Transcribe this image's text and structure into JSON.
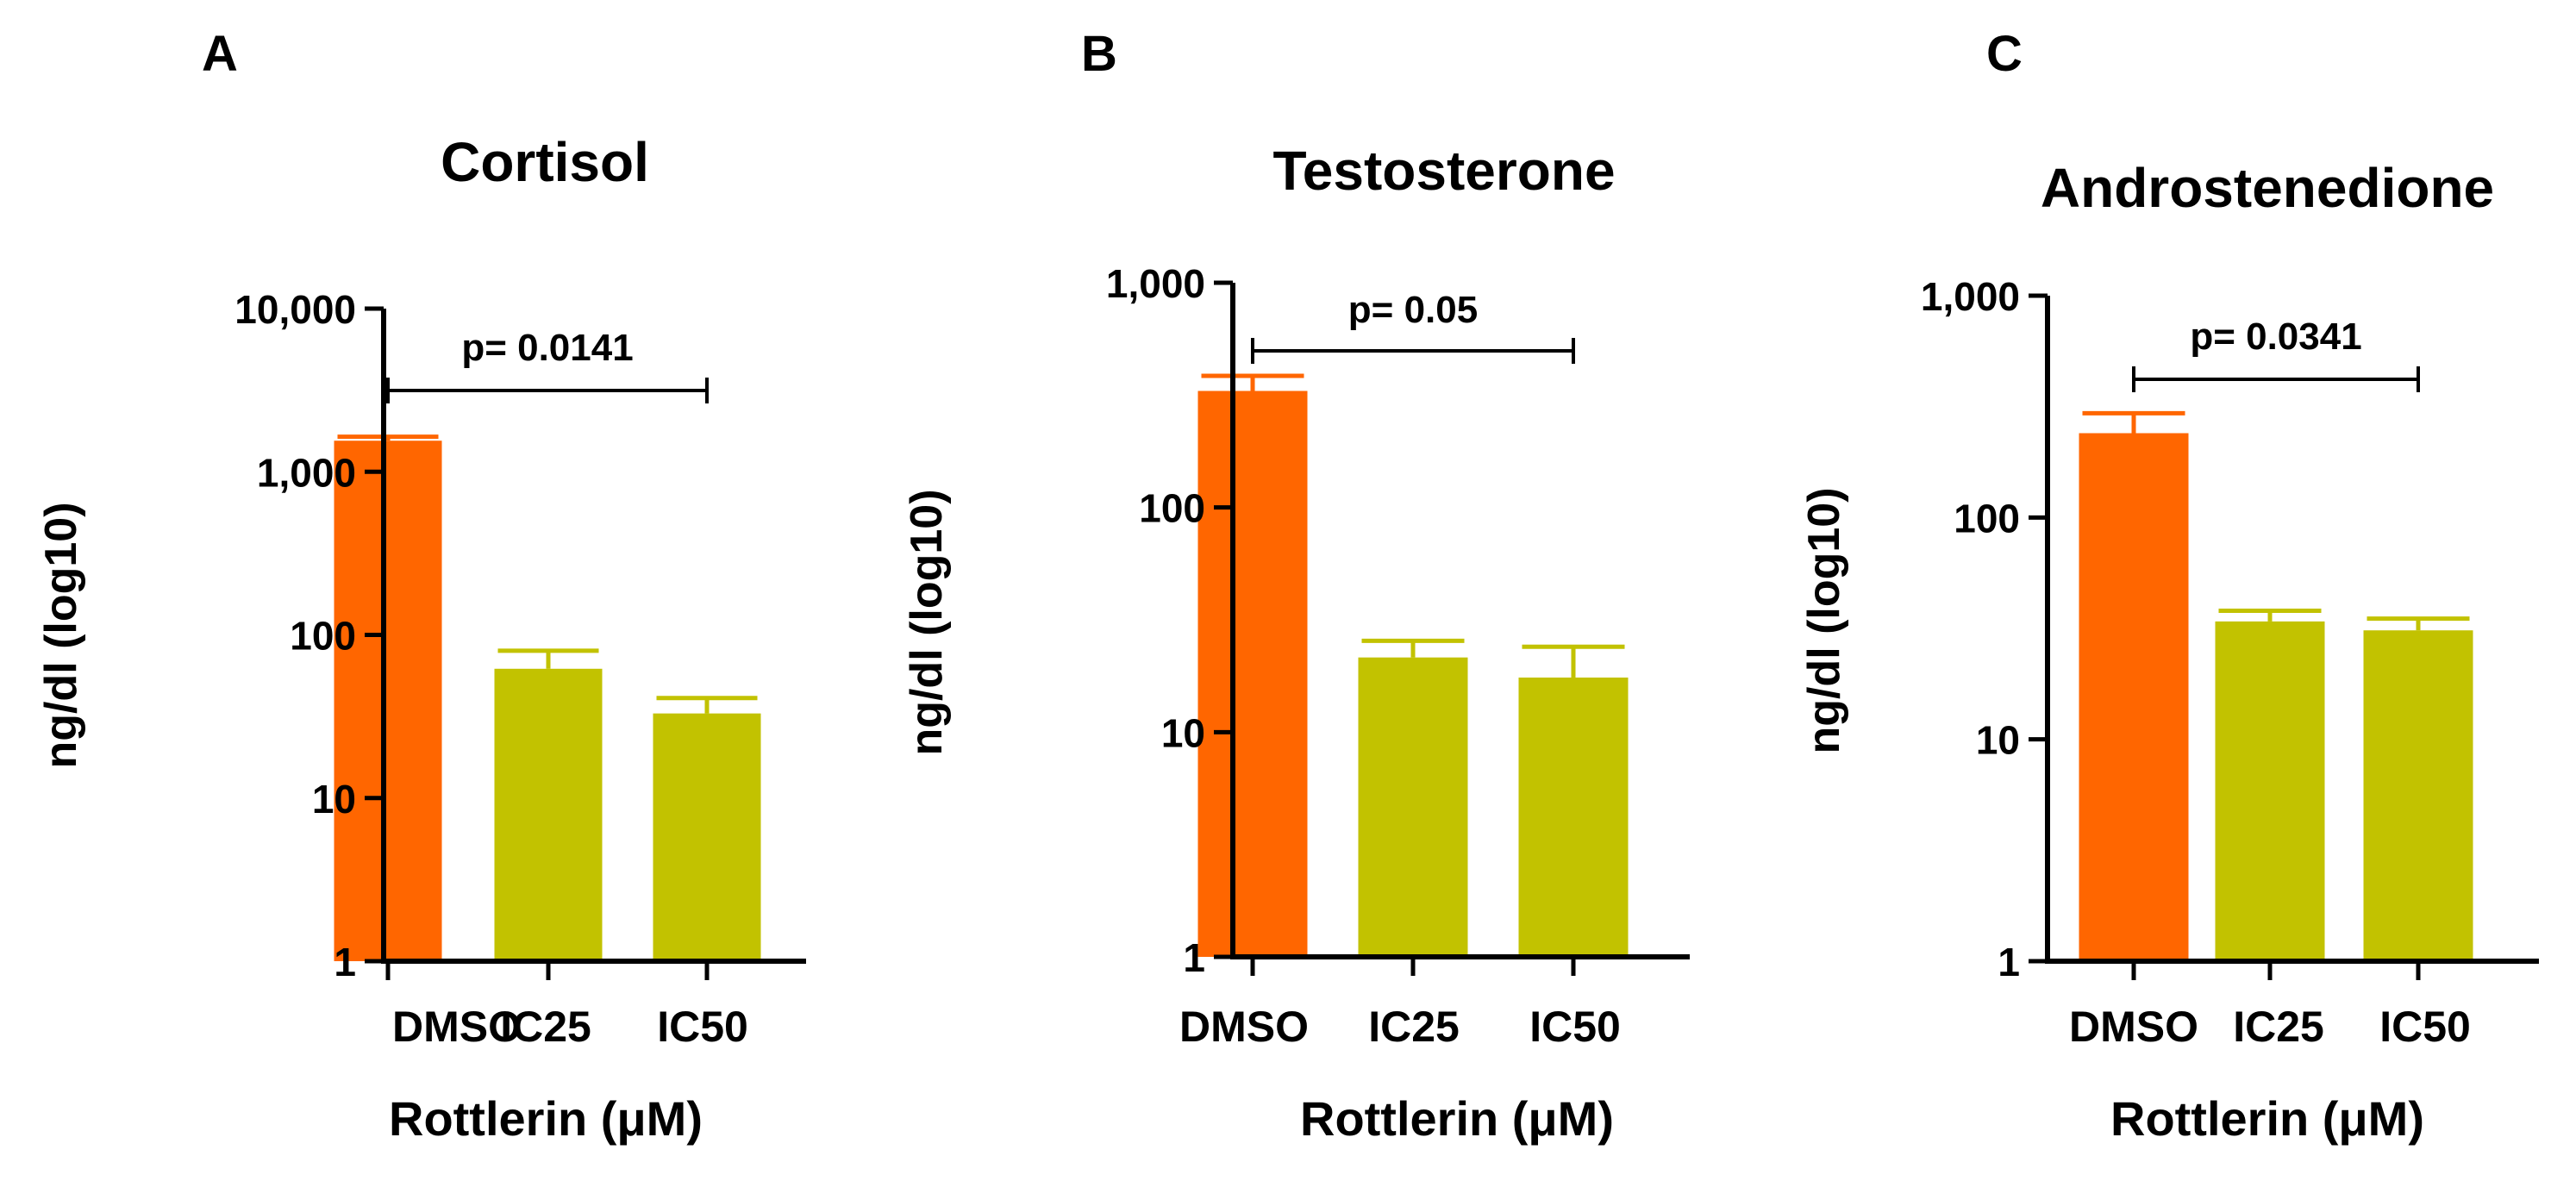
{
  "chart_data": [
    {
      "type": "bar",
      "panel_letter": "A",
      "title": "Cortisol",
      "ylabel": "ng/dl (log10)",
      "xlabel": "Rottlerin (μM)",
      "yscale": "log10",
      "ylim": [
        1,
        10000
      ],
      "yticks": [
        1,
        10,
        100,
        1000,
        10000
      ],
      "ytick_labels": [
        "1",
        "10",
        "100",
        "1,000",
        "10,000"
      ],
      "categories": [
        "DMSO",
        "IC25",
        "IC50"
      ],
      "values": [
        1550,
        62,
        33
      ],
      "error_upper": [
        1640,
        80,
        41
      ],
      "bar_colors": [
        "#FF6600",
        "#C2C200",
        "#C2C200"
      ],
      "significance": {
        "from": "DMSO",
        "to": "IC50",
        "label": "p= 0.0141"
      }
    },
    {
      "type": "bar",
      "panel_letter": "B",
      "title": "Testosterone",
      "ylabel": "ng/dl (log10)",
      "xlabel": "Rottlerin (μM)",
      "yscale": "log10",
      "ylim": [
        1,
        1000
      ],
      "yticks": [
        1,
        10,
        100,
        1000
      ],
      "ytick_labels": [
        "1",
        "10",
        "100",
        "1,000"
      ],
      "categories": [
        "DMSO",
        "IC25",
        "IC50"
      ],
      "values": [
        330,
        21.5,
        17.5
      ],
      "error_upper": [
        385,
        25.5,
        24
      ],
      "bar_colors": [
        "#FF6600",
        "#C2C200",
        "#C2C200"
      ],
      "significance": {
        "from": "DMSO",
        "to": "IC50",
        "label": "p= 0.05"
      }
    },
    {
      "type": "bar",
      "panel_letter": "C",
      "title": "Androstenedione",
      "ylabel": "ng/dl (log10)",
      "xlabel": "Rottlerin (μM)",
      "yscale": "log10",
      "ylim": [
        1,
        1000
      ],
      "yticks": [
        1,
        10,
        100,
        1000
      ],
      "ytick_labels": [
        "1",
        "10",
        "100",
        "1,000"
      ],
      "categories": [
        "DMSO",
        "IC25",
        "IC50"
      ],
      "values": [
        240,
        34,
        31
      ],
      "error_upper": [
        295,
        38,
        35
      ],
      "bar_colors": [
        "#FF6600",
        "#C2C200",
        "#C2C200"
      ],
      "significance": {
        "from": "DMSO",
        "to": "IC50",
        "label": "p= 0.0341"
      }
    }
  ]
}
